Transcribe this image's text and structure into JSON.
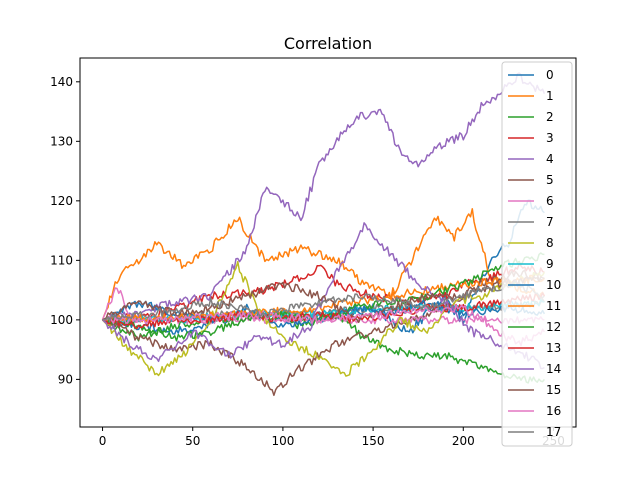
{
  "chart_data": {
    "type": "line",
    "title": "Correlation",
    "xlabel": "",
    "ylabel": "",
    "xlim": [
      -12.5,
      262.5
    ],
    "ylim": [
      82,
      144
    ],
    "xticks": [
      0,
      50,
      100,
      150,
      200,
      250
    ],
    "yticks": [
      90,
      100,
      110,
      120,
      130,
      140
    ],
    "grid": false,
    "legend_position": "upper-right",
    "series": [
      {
        "name": "0",
        "color": "#1f77b4",
        "keypoints": [
          [
            0,
            100
          ],
          [
            40,
            98
          ],
          [
            80,
            101
          ],
          [
            120,
            100
          ],
          [
            150,
            102
          ],
          [
            170,
            98
          ],
          [
            190,
            104
          ],
          [
            200,
            100
          ],
          [
            215,
            110
          ],
          [
            225,
            113
          ],
          [
            235,
            120
          ],
          [
            245,
            118
          ]
        ]
      },
      {
        "name": "1",
        "color": "#ff7f0e",
        "keypoints": [
          [
            0,
            100
          ],
          [
            10,
            108
          ],
          [
            20,
            110
          ],
          [
            30,
            113
          ],
          [
            45,
            109
          ],
          [
            60,
            112
          ],
          [
            75,
            117
          ],
          [
            90,
            110
          ],
          [
            110,
            112
          ],
          [
            130,
            110
          ],
          [
            145,
            106
          ],
          [
            160,
            104
          ],
          [
            175,
            112
          ],
          [
            185,
            117
          ],
          [
            195,
            114
          ],
          [
            205,
            118
          ],
          [
            215,
            107
          ],
          [
            225,
            106
          ],
          [
            245,
            104
          ]
        ]
      },
      {
        "name": "2",
        "color": "#2ca02c",
        "keypoints": [
          [
            0,
            100
          ],
          [
            20,
            97
          ],
          [
            40,
            99
          ],
          [
            60,
            100
          ],
          [
            90,
            101
          ],
          [
            110,
            99
          ],
          [
            130,
            101
          ],
          [
            145,
            97
          ],
          [
            160,
            95
          ],
          [
            175,
            94
          ],
          [
            190,
            94
          ],
          [
            200,
            93
          ],
          [
            210,
            92
          ],
          [
            220,
            91
          ],
          [
            230,
            90
          ],
          [
            245,
            90
          ]
        ]
      },
      {
        "name": "3",
        "color": "#d62728",
        "keypoints": [
          [
            0,
            100
          ],
          [
            30,
            101
          ],
          [
            60,
            104
          ],
          [
            90,
            105
          ],
          [
            110,
            107
          ],
          [
            120,
            109
          ],
          [
            130,
            106
          ],
          [
            150,
            104
          ],
          [
            170,
            103
          ],
          [
            190,
            104
          ],
          [
            200,
            106
          ],
          [
            215,
            107
          ],
          [
            230,
            109
          ],
          [
            245,
            108
          ]
        ]
      },
      {
        "name": "4",
        "color": "#9467bd",
        "keypoints": [
          [
            0,
            100
          ],
          [
            20,
            101
          ],
          [
            40,
            103
          ],
          [
            60,
            104
          ],
          [
            70,
            108
          ],
          [
            80,
            112
          ],
          [
            90,
            122
          ],
          [
            100,
            120
          ],
          [
            110,
            117
          ],
          [
            120,
            126
          ],
          [
            130,
            130
          ],
          [
            140,
            134
          ],
          [
            155,
            135
          ],
          [
            165,
            128
          ],
          [
            175,
            126
          ],
          [
            185,
            129
          ],
          [
            200,
            131
          ],
          [
            210,
            136
          ],
          [
            220,
            138
          ],
          [
            230,
            141
          ],
          [
            245,
            138
          ]
        ]
      },
      {
        "name": "5",
        "color": "#8c564b",
        "keypoints": [
          [
            0,
            100
          ],
          [
            20,
            97
          ],
          [
            40,
            95
          ],
          [
            60,
            96
          ],
          [
            80,
            92
          ],
          [
            95,
            88
          ],
          [
            110,
            92
          ],
          [
            130,
            96
          ],
          [
            150,
            98
          ],
          [
            170,
            100
          ],
          [
            190,
            102
          ],
          [
            210,
            106
          ],
          [
            230,
            108
          ],
          [
            245,
            107
          ]
        ]
      },
      {
        "name": "6",
        "color": "#e377c2",
        "keypoints": [
          [
            0,
            100
          ],
          [
            8,
            106
          ],
          [
            15,
            100
          ],
          [
            40,
            100
          ],
          [
            80,
            100
          ],
          [
            120,
            100
          ],
          [
            160,
            100
          ],
          [
            200,
            100
          ],
          [
            245,
            100
          ]
        ]
      },
      {
        "name": "7",
        "color": "#7f7f7f",
        "keypoints": [
          [
            0,
            100
          ],
          [
            30,
            100
          ],
          [
            60,
            101
          ],
          [
            90,
            101
          ],
          [
            120,
            101
          ],
          [
            150,
            102
          ],
          [
            180,
            102
          ],
          [
            210,
            102
          ],
          [
            245,
            103
          ]
        ]
      },
      {
        "name": "8",
        "color": "#bcbd22",
        "keypoints": [
          [
            0,
            100
          ],
          [
            15,
            95
          ],
          [
            30,
            91
          ],
          [
            45,
            94
          ],
          [
            60,
            100
          ],
          [
            75,
            109
          ],
          [
            90,
            100
          ],
          [
            105,
            96
          ],
          [
            120,
            94
          ],
          [
            135,
            91
          ],
          [
            150,
            95
          ],
          [
            165,
            100
          ],
          [
            180,
            98
          ],
          [
            195,
            103
          ],
          [
            210,
            104
          ],
          [
            225,
            106
          ],
          [
            245,
            108
          ]
        ]
      },
      {
        "name": "9",
        "color": "#17becf",
        "keypoints": [
          [
            0,
            100
          ],
          [
            40,
            100
          ],
          [
            80,
            101
          ],
          [
            120,
            101
          ],
          [
            160,
            102
          ],
          [
            200,
            102
          ],
          [
            245,
            103
          ]
        ]
      },
      {
        "name": "10",
        "color": "#1f77b4",
        "keypoints": [
          [
            0,
            100
          ],
          [
            20,
            103
          ],
          [
            40,
            101
          ],
          [
            60,
            100
          ],
          [
            80,
            102
          ],
          [
            100,
            99
          ],
          [
            120,
            100
          ],
          [
            140,
            102
          ],
          [
            160,
            101
          ],
          [
            180,
            103
          ],
          [
            200,
            101
          ],
          [
            220,
            102
          ],
          [
            245,
            101
          ]
        ]
      },
      {
        "name": "11",
        "color": "#ff7f0e",
        "keypoints": [
          [
            0,
            100
          ],
          [
            40,
            100.5
          ],
          [
            80,
            101
          ],
          [
            120,
            102
          ],
          [
            160,
            104
          ],
          [
            200,
            106
          ],
          [
            245,
            107
          ]
        ]
      },
      {
        "name": "12",
        "color": "#2ca02c",
        "keypoints": [
          [
            0,
            100
          ],
          [
            20,
            99
          ],
          [
            40,
            97
          ],
          [
            60,
            98
          ],
          [
            80,
            100
          ],
          [
            100,
            101
          ],
          [
            120,
            100
          ],
          [
            140,
            102
          ],
          [
            160,
            103
          ],
          [
            180,
            104
          ],
          [
            200,
            106
          ],
          [
            220,
            109
          ],
          [
            245,
            111
          ]
        ]
      },
      {
        "name": "13",
        "color": "#d62728",
        "keypoints": [
          [
            0,
            100
          ],
          [
            20,
            99
          ],
          [
            40,
            100
          ],
          [
            60,
            100
          ],
          [
            80,
            101
          ],
          [
            100,
            100
          ],
          [
            120,
            101
          ],
          [
            140,
            100
          ],
          [
            160,
            101
          ],
          [
            180,
            102
          ],
          [
            200,
            102
          ],
          [
            220,
            103
          ],
          [
            245,
            104
          ]
        ]
      },
      {
        "name": "14",
        "color": "#9467bd",
        "keypoints": [
          [
            0,
            100
          ],
          [
            15,
            96
          ],
          [
            30,
            93
          ],
          [
            50,
            98
          ],
          [
            70,
            94
          ],
          [
            85,
            97
          ],
          [
            100,
            96
          ],
          [
            115,
            99
          ],
          [
            130,
            108
          ],
          [
            145,
            116
          ],
          [
            160,
            111
          ],
          [
            175,
            106
          ],
          [
            190,
            103
          ],
          [
            205,
            98
          ],
          [
            220,
            96
          ],
          [
            235,
            94
          ],
          [
            245,
            92
          ]
        ]
      },
      {
        "name": "15",
        "color": "#8c564b",
        "keypoints": [
          [
            0,
            100
          ],
          [
            20,
            103
          ],
          [
            40,
            101
          ],
          [
            60,
            102
          ],
          [
            80,
            104
          ],
          [
            100,
            106
          ],
          [
            120,
            104
          ],
          [
            140,
            100
          ],
          [
            160,
            102
          ],
          [
            180,
            104
          ],
          [
            200,
            104
          ],
          [
            220,
            106
          ],
          [
            245,
            107
          ]
        ]
      },
      {
        "name": "16",
        "color": "#e377c2",
        "keypoints": [
          [
            0,
            100
          ],
          [
            40,
            100
          ],
          [
            80,
            101
          ],
          [
            120,
            100
          ],
          [
            160,
            101
          ],
          [
            200,
            102
          ],
          [
            230,
            96
          ],
          [
            245,
            98
          ]
        ]
      },
      {
        "name": "17",
        "color": "#7f7f7f",
        "keypoints": [
          [
            0,
            100
          ],
          [
            30,
            101
          ],
          [
            60,
            103
          ],
          [
            90,
            101
          ],
          [
            120,
            103
          ],
          [
            150,
            104
          ],
          [
            180,
            102
          ],
          [
            210,
            105
          ],
          [
            230,
            106
          ],
          [
            245,
            104
          ]
        ]
      }
    ]
  }
}
